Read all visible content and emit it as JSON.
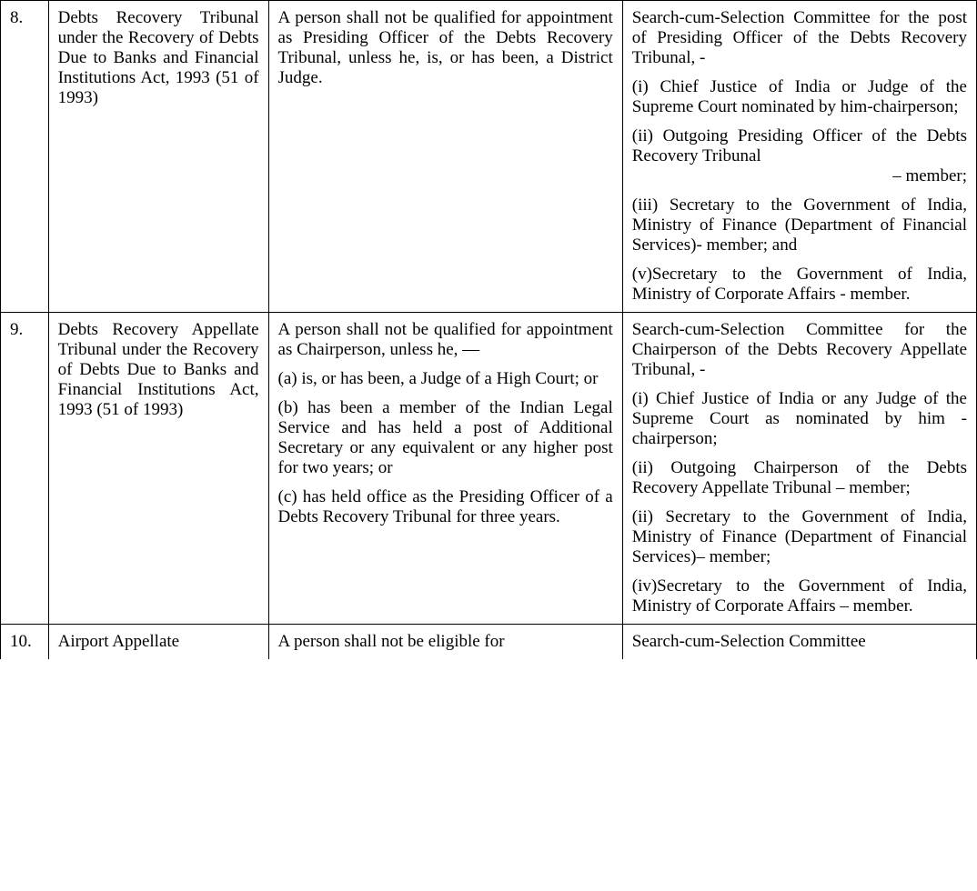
{
  "rows": [
    {
      "num": "8.",
      "tribunal": "Debts Recovery Tribunal under the Recovery of Debts Due to Banks and Financial Institutions Act, 1993 (51 of 1993)",
      "qualification_paras": [
        "A person shall not be qualified for appointment as Presiding Officer of the Debts Recovery Tribunal, unless he, is, or has been, a District Judge."
      ],
      "committee_paras": [
        {
          "text": "Search-cum-Selection Committee for the post of Presiding Officer of the Debts Recovery Tribunal, -"
        },
        {
          "text": "(i) Chief Justice of India or Judge of the Supreme Court nominated by him-chairperson;"
        },
        {
          "text": "(ii) Outgoing Presiding Officer of the Debts Recovery Tribunal",
          "tail": "– member;"
        },
        {
          "text": "(iii) Secretary to the Government of India, Ministry of Finance (Department of Financial Services)- member; and"
        },
        {
          "text": "(v)Secretary to the Government of India, Ministry of Corporate Affairs - member."
        }
      ]
    },
    {
      "num": "9.",
      "tribunal": "Debts Recovery Appellate Tribunal under the Recovery of Debts Due to Banks and Financial Institutions Act, 1993 (51 of 1993)",
      "qualification_paras": [
        "A person shall not be qualified for appointment as Chairperson, unless he, —",
        "(a) is, or has been, a Judge of a High Court; or",
        "(b) has been a member of the Indian Legal Service and has held a post of Additional Secretary or any equivalent or any higher post for two years; or",
        "(c) has held office as the Presiding Officer of a Debts Recovery Tribunal for three years."
      ],
      "committee_paras": [
        {
          "text": "Search-cum-Selection Committee for the Chairperson of the Debts Recovery Appellate Tribunal, -"
        },
        {
          "text": "(i) Chief Justice of India or any Judge of the Supreme Court as nominated by him - chairperson;"
        },
        {
          "text": "(ii) Outgoing Chairperson of the Debts Recovery Appellate Tribunal – member;"
        },
        {
          "text": "(ii) Secretary to the Government of India, Ministry of Finance (Department of Financial Services)– member;"
        },
        {
          "text": "(iv)Secretary to the Government of India, Ministry of Corporate Affairs – member."
        }
      ]
    }
  ],
  "partial": {
    "num": "10.",
    "tribunal": "Airport Appellate",
    "qualification": "A person shall not be eligible for",
    "committee": "Search-cum-Selection Committee"
  }
}
